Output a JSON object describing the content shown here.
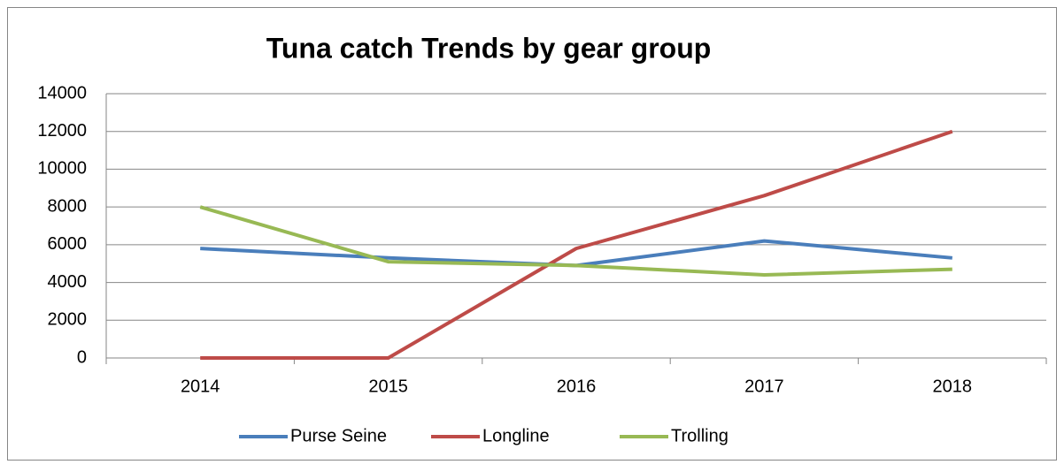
{
  "chart_data": {
    "type": "line",
    "title": "Tuna catch Trends by gear group",
    "categories": [
      "2014",
      "2015",
      "2016",
      "2017",
      "2018"
    ],
    "series": [
      {
        "name": "Purse Seine",
        "color": "#4a7ebb",
        "values": [
          5800,
          5300,
          4900,
          6200,
          5300
        ]
      },
      {
        "name": "Longline",
        "color": "#be4b48",
        "values": [
          0,
          0,
          5800,
          8600,
          12000
        ]
      },
      {
        "name": "Trolling",
        "color": "#98b954",
        "values": [
          8000,
          5100,
          4900,
          4400,
          4700
        ]
      }
    ],
    "ylim": [
      0,
      14000
    ],
    "yticks": [
      0,
      2000,
      4000,
      6000,
      8000,
      10000,
      12000,
      14000
    ],
    "grid": true,
    "legend": "bottom"
  }
}
